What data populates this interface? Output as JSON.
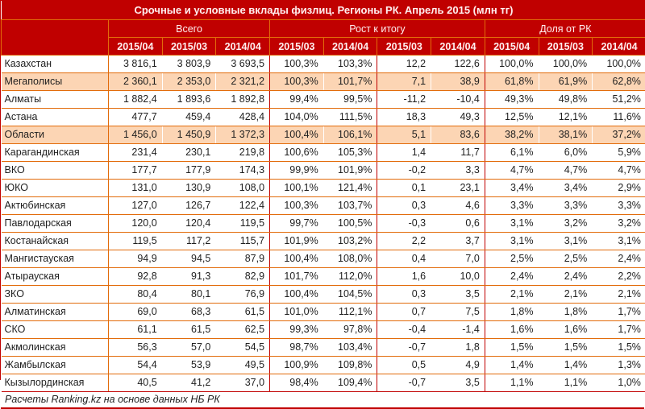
{
  "colors": {
    "header_red": "#C00000",
    "grid_orange": "#E26B0A",
    "highlight_peach": "#FCD5B4",
    "header_text": "#FFEFEF",
    "body_text": "#1F1F1F"
  },
  "chart_data": {
    "type": "table",
    "title": "Срочные и условные вклады физлиц. Регионы РК. Апрель 2015 (млн тг)",
    "footer": "Расчеты Ranking.kz на основе данных НБ РК",
    "column_groups": [
      {
        "label": "",
        "span": 1
      },
      {
        "label": "Всего",
        "span": 3
      },
      {
        "label": "Рост к итогу",
        "span": 4
      },
      {
        "label": "Доля от РК",
        "span": 3
      }
    ],
    "sub_headers": [
      "2015/04",
      "2015/03",
      "2014/04",
      "2015/03",
      "2014/04",
      "2015/03",
      "2014/04",
      "2015/04",
      "2015/03",
      "2014/04"
    ],
    "rows": [
      {
        "region": "Казахстан",
        "highlight": false,
        "values": [
          "3 816,1",
          "3 803,9",
          "3 693,5",
          "100,3%",
          "103,3%",
          "12,2",
          "122,6",
          "100,0%",
          "100,0%",
          "100,0%"
        ]
      },
      {
        "region": "Мегаполисы",
        "highlight": true,
        "values": [
          "2 360,1",
          "2 353,0",
          "2 321,2",
          "100,3%",
          "101,7%",
          "7,1",
          "38,9",
          "61,8%",
          "61,9%",
          "62,8%"
        ]
      },
      {
        "region": "Алматы",
        "highlight": false,
        "values": [
          "1 882,4",
          "1 893,6",
          "1 892,8",
          "99,4%",
          "99,5%",
          "-11,2",
          "-10,4",
          "49,3%",
          "49,8%",
          "51,2%"
        ]
      },
      {
        "region": "Астана",
        "highlight": false,
        "values": [
          "477,7",
          "459,4",
          "428,4",
          "104,0%",
          "111,5%",
          "18,3",
          "49,3",
          "12,5%",
          "12,1%",
          "11,6%"
        ]
      },
      {
        "region": "Области",
        "highlight": true,
        "values": [
          "1 456,0",
          "1 450,9",
          "1 372,3",
          "100,4%",
          "106,1%",
          "5,1",
          "83,6",
          "38,2%",
          "38,1%",
          "37,2%"
        ]
      },
      {
        "region": "Карагандинская",
        "highlight": false,
        "values": [
          "231,4",
          "230,1",
          "219,8",
          "100,6%",
          "105,3%",
          "1,4",
          "11,7",
          "6,1%",
          "6,0%",
          "5,9%"
        ]
      },
      {
        "region": "ВКО",
        "highlight": false,
        "values": [
          "177,7",
          "177,9",
          "174,3",
          "99,9%",
          "101,9%",
          "-0,2",
          "3,3",
          "4,7%",
          "4,7%",
          "4,7%"
        ]
      },
      {
        "region": "ЮКО",
        "highlight": false,
        "values": [
          "131,0",
          "130,9",
          "108,0",
          "100,1%",
          "121,4%",
          "0,1",
          "23,1",
          "3,4%",
          "3,4%",
          "2,9%"
        ]
      },
      {
        "region": "Актюбинская",
        "highlight": false,
        "values": [
          "127,0",
          "126,7",
          "122,4",
          "100,3%",
          "103,7%",
          "0,3",
          "4,6",
          "3,3%",
          "3,3%",
          "3,3%"
        ]
      },
      {
        "region": "Павлодарская",
        "highlight": false,
        "values": [
          "120,0",
          "120,4",
          "119,5",
          "99,7%",
          "100,5%",
          "-0,3",
          "0,6",
          "3,1%",
          "3,2%",
          "3,2%"
        ]
      },
      {
        "region": "Костанайская",
        "highlight": false,
        "values": [
          "119,5",
          "117,2",
          "115,7",
          "101,9%",
          "103,2%",
          "2,2",
          "3,7",
          "3,1%",
          "3,1%",
          "3,1%"
        ]
      },
      {
        "region": "Мангистауская",
        "highlight": false,
        "values": [
          "94,9",
          "94,5",
          "87,9",
          "100,4%",
          "108,0%",
          "0,4",
          "7,0",
          "2,5%",
          "2,5%",
          "2,4%"
        ]
      },
      {
        "region": "Атырауская",
        "highlight": false,
        "values": [
          "92,8",
          "91,3",
          "82,9",
          "101,7%",
          "112,0%",
          "1,6",
          "10,0",
          "2,4%",
          "2,4%",
          "2,2%"
        ]
      },
      {
        "region": "ЗКО",
        "highlight": false,
        "values": [
          "80,4",
          "80,1",
          "76,9",
          "100,4%",
          "104,5%",
          "0,3",
          "3,5",
          "2,1%",
          "2,1%",
          "2,1%"
        ]
      },
      {
        "region": "Алматинская",
        "highlight": false,
        "values": [
          "69,0",
          "68,3",
          "61,5",
          "101,0%",
          "112,1%",
          "0,7",
          "7,5",
          "1,8%",
          "1,8%",
          "1,7%"
        ]
      },
      {
        "region": "СКО",
        "highlight": false,
        "values": [
          "61,1",
          "61,5",
          "62,5",
          "99,3%",
          "97,8%",
          "-0,4",
          "-1,4",
          "1,6%",
          "1,6%",
          "1,7%"
        ]
      },
      {
        "region": "Акмолинская",
        "highlight": false,
        "values": [
          "56,3",
          "57,0",
          "54,5",
          "98,7%",
          "103,4%",
          "-0,7",
          "1,8",
          "1,5%",
          "1,5%",
          "1,5%"
        ]
      },
      {
        "region": "Жамбылская",
        "highlight": false,
        "values": [
          "54,4",
          "53,9",
          "49,5",
          "100,9%",
          "109,8%",
          "0,5",
          "4,9",
          "1,4%",
          "1,4%",
          "1,3%"
        ]
      },
      {
        "region": "Кызылординская",
        "highlight": false,
        "values": [
          "40,5",
          "41,2",
          "37,0",
          "98,4%",
          "109,4%",
          "-0,7",
          "3,5",
          "1,1%",
          "1,1%",
          "1,0%"
        ]
      }
    ]
  }
}
